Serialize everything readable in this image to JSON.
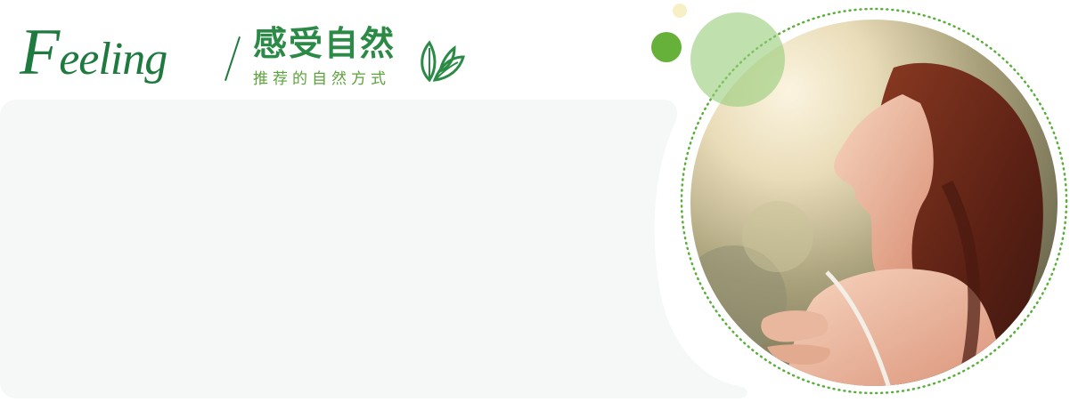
{
  "header": {
    "feeling_first_letter": "F",
    "feeling_rest": "eeling",
    "title_cn": "感受自然",
    "subtitle_cn": "推荐的自然方式"
  },
  "colors": {
    "brand_green": "#1f7a3f",
    "title_green": "#2a8a46",
    "sub_green": "#5aa23a",
    "dot_green": "#66b13a",
    "card_bg": "#f6f8f7"
  },
  "icons": {
    "leaf": "leaf-icon"
  }
}
